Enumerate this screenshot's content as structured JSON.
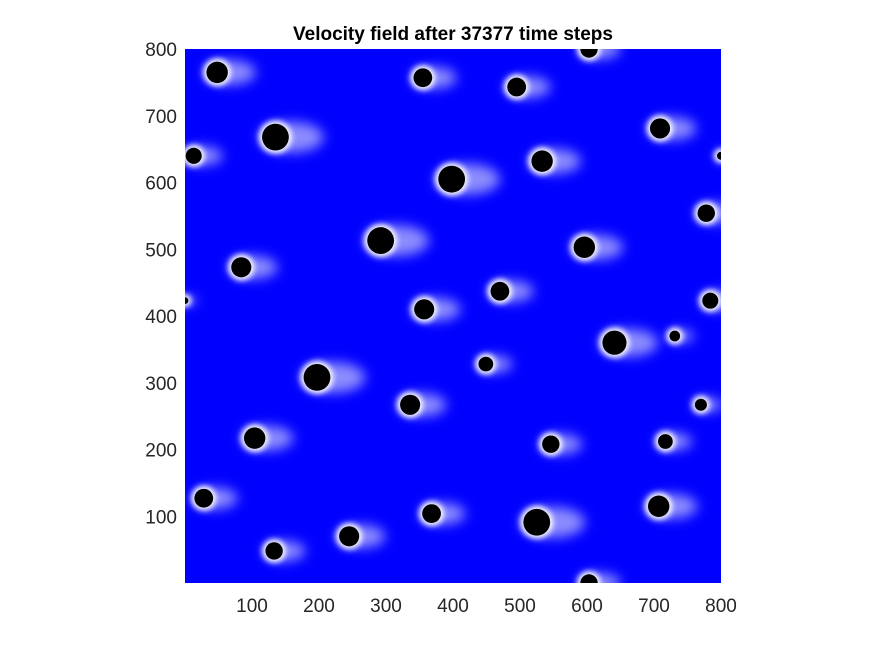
{
  "chart_data": {
    "type": "heatmap",
    "title": "Velocity field after 37377 time steps",
    "xlabel": "",
    "ylabel": "",
    "xlim": [
      0,
      800
    ],
    "ylim": [
      0,
      800
    ],
    "x_ticks": [
      "100",
      "200",
      "300",
      "400",
      "500",
      "600",
      "700",
      "800"
    ],
    "y_ticks": [
      "100",
      "200",
      "300",
      "400",
      "500",
      "600",
      "700",
      "800"
    ],
    "colors": {
      "field": "#0000ff",
      "wake": "#ffffff",
      "obstacle": "#000000"
    },
    "obstacles": [
      {
        "x": 48,
        "y": 765,
        "r": 16
      },
      {
        "x": 355,
        "y": 757,
        "r": 14
      },
      {
        "x": 495,
        "y": 743,
        "r": 14
      },
      {
        "x": 603,
        "y": 800,
        "r": 13
      },
      {
        "x": 135,
        "y": 668,
        "r": 20
      },
      {
        "x": 709,
        "y": 681,
        "r": 15
      },
      {
        "x": 13,
        "y": 640,
        "r": 12
      },
      {
        "x": 800,
        "y": 640,
        "r": 6
      },
      {
        "x": 398,
        "y": 605,
        "r": 20
      },
      {
        "x": 533,
        "y": 632,
        "r": 16
      },
      {
        "x": 778,
        "y": 554,
        "r": 13
      },
      {
        "x": 292,
        "y": 513,
        "r": 20
      },
      {
        "x": 596,
        "y": 503,
        "r": 16
      },
      {
        "x": 84,
        "y": 473,
        "r": 15
      },
      {
        "x": 470,
        "y": 437,
        "r": 14
      },
      {
        "x": 357,
        "y": 410,
        "r": 15
      },
      {
        "x": 784,
        "y": 423,
        "r": 12
      },
      {
        "x": 0,
        "y": 423,
        "r": 5
      },
      {
        "x": 641,
        "y": 360,
        "r": 18
      },
      {
        "x": 731,
        "y": 370,
        "r": 8
      },
      {
        "x": 449,
        "y": 328,
        "r": 11
      },
      {
        "x": 197,
        "y": 308,
        "r": 20
      },
      {
        "x": 336,
        "y": 267,
        "r": 15
      },
      {
        "x": 770,
        "y": 267,
        "r": 9
      },
      {
        "x": 104,
        "y": 217,
        "r": 16
      },
      {
        "x": 546,
        "y": 208,
        "r": 13
      },
      {
        "x": 717,
        "y": 212,
        "r": 11
      },
      {
        "x": 28,
        "y": 127,
        "r": 14
      },
      {
        "x": 368,
        "y": 104,
        "r": 14
      },
      {
        "x": 525,
        "y": 91,
        "r": 20
      },
      {
        "x": 707,
        "y": 115,
        "r": 16
      },
      {
        "x": 245,
        "y": 70,
        "r": 15
      },
      {
        "x": 133,
        "y": 48,
        "r": 13
      },
      {
        "x": 603,
        "y": 0,
        "r": 13
      }
    ]
  }
}
